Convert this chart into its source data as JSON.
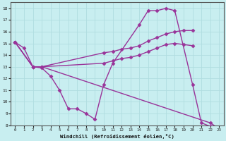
{
  "xlabel": "Windchill (Refroidissement éolien,°C)",
  "xlim": [
    -0.5,
    23.5
  ],
  "ylim": [
    8,
    18.5
  ],
  "xticks": [
    0,
    1,
    2,
    3,
    4,
    5,
    6,
    7,
    8,
    9,
    10,
    11,
    12,
    13,
    14,
    15,
    16,
    17,
    18,
    19,
    20,
    21,
    22,
    23
  ],
  "yticks": [
    8,
    9,
    10,
    11,
    12,
    13,
    14,
    15,
    16,
    17,
    18
  ],
  "bg_color": "#c8eef0",
  "grid_color": "#b0dde0",
  "line_color": "#993399",
  "line_width": 1.0,
  "marker": "D",
  "marker_size": 2.5,
  "lines": [
    {
      "x": [
        0,
        1,
        2,
        3,
        4,
        5,
        6,
        7,
        8,
        9,
        10,
        11,
        14,
        15,
        16,
        17,
        18,
        20,
        21,
        22,
        23
      ],
      "y": [
        15.1,
        14.6,
        13.0,
        12.9,
        12.2,
        11.0,
        9.4,
        9.4,
        9.0,
        8.5,
        11.5,
        13.3,
        16.6,
        17.8,
        17.8,
        18.0,
        17.8,
        11.5,
        8.2,
        7.9,
        7.7
      ]
    },
    {
      "x": [
        0,
        2,
        3,
        22,
        23
      ],
      "y": [
        15.1,
        13.0,
        13.0,
        8.2,
        7.7
      ]
    },
    {
      "x": [
        0,
        2,
        3,
        10,
        11,
        12,
        13,
        14,
        15,
        16,
        17,
        18,
        19,
        20
      ],
      "y": [
        15.1,
        13.0,
        13.0,
        14.2,
        14.3,
        14.5,
        14.6,
        14.8,
        15.2,
        15.5,
        15.8,
        16.0,
        16.1,
        16.1
      ]
    },
    {
      "x": [
        0,
        2,
        3,
        10,
        11,
        12,
        13,
        14,
        15,
        16,
        17,
        18,
        19,
        20
      ],
      "y": [
        15.1,
        13.0,
        13.0,
        13.3,
        13.5,
        13.7,
        13.8,
        14.0,
        14.3,
        14.6,
        14.9,
        15.0,
        14.9,
        14.8
      ]
    }
  ]
}
